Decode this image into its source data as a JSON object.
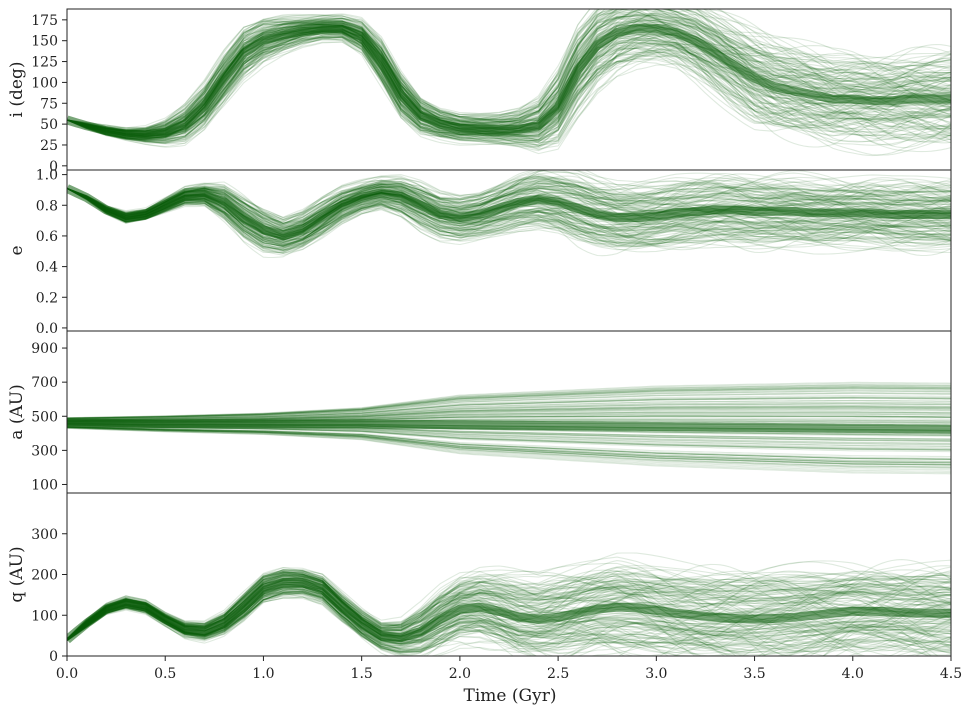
{
  "chart_data": {
    "type": "line",
    "xlabel": "Time (Gyr)",
    "xlim": [
      0,
      4.5
    ],
    "xticks": [
      "0.0",
      "0.5",
      "1.0",
      "1.5",
      "2.0",
      "2.5",
      "3.0",
      "3.5",
      "4.0",
      "4.5"
    ],
    "line_color": "#0b5d0b",
    "panels": [
      {
        "ylabel": "i (deg)",
        "ylim": [
          -5,
          188
        ],
        "yticks": [
          "0",
          "25",
          "50",
          "75",
          "100",
          "125",
          "150",
          "175"
        ],
        "dominant_track": {
          "x": [
            0.0,
            0.1,
            0.2,
            0.3,
            0.4,
            0.5,
            0.6,
            0.7,
            0.8,
            0.9,
            1.0,
            1.1,
            1.2,
            1.3,
            1.4,
            1.5,
            1.6,
            1.7,
            1.8,
            1.9,
            2.0,
            2.1,
            2.2,
            2.3,
            2.4,
            2.5,
            2.6,
            2.7,
            2.8,
            2.9,
            3.0,
            3.1,
            3.2,
            3.3,
            3.4,
            3.5,
            3.6,
            3.7,
            3.8,
            3.9,
            4.0,
            4.1,
            4.2,
            4.3,
            4.4,
            4.5
          ],
          "y": [
            55,
            48,
            42,
            38,
            37,
            40,
            50,
            72,
            105,
            135,
            150,
            157,
            162,
            165,
            165,
            155,
            125,
            85,
            60,
            50,
            45,
            44,
            43,
            44,
            48,
            70,
            115,
            145,
            160,
            165,
            165,
            160,
            150,
            135,
            120,
            105,
            95,
            90,
            85,
            80,
            80,
            78,
            78,
            80,
            80,
            80
          ]
        },
        "spread": [
          0,
          3,
          5,
          6,
          8,
          12,
          18,
          22,
          25,
          25,
          22,
          18,
          14,
          12,
          12,
          16,
          22,
          22,
          18,
          15,
          14,
          14,
          15,
          18,
          25,
          35,
          40,
          40,
          38,
          36,
          35,
          35,
          38,
          40,
          42,
          45,
          45,
          45,
          45,
          45,
          45,
          45,
          45,
          45,
          45,
          45
        ]
      },
      {
        "ylabel": "e",
        "ylim": [
          -0.02,
          1.03
        ],
        "yticks": [
          "0.0",
          "0.2",
          "0.4",
          "0.6",
          "0.8",
          "1.0"
        ],
        "dominant_track": {
          "x": [
            0.0,
            0.1,
            0.2,
            0.3,
            0.4,
            0.5,
            0.6,
            0.7,
            0.8,
            0.9,
            1.0,
            1.1,
            1.2,
            1.3,
            1.4,
            1.5,
            1.6,
            1.7,
            1.8,
            1.9,
            2.0,
            2.1,
            2.2,
            2.3,
            2.4,
            2.5,
            2.6,
            2.7,
            2.8,
            2.9,
            3.0,
            3.1,
            3.2,
            3.3,
            3.4,
            3.5,
            3.6,
            3.7,
            3.8,
            3.9,
            4.0,
            4.1,
            4.2,
            4.3,
            4.4,
            4.5
          ],
          "y": [
            0.91,
            0.85,
            0.77,
            0.72,
            0.74,
            0.8,
            0.86,
            0.87,
            0.82,
            0.72,
            0.64,
            0.6,
            0.64,
            0.72,
            0.8,
            0.85,
            0.88,
            0.86,
            0.8,
            0.74,
            0.72,
            0.74,
            0.78,
            0.82,
            0.84,
            0.82,
            0.78,
            0.74,
            0.72,
            0.72,
            0.73,
            0.75,
            0.76,
            0.77,
            0.77,
            0.76,
            0.76,
            0.76,
            0.75,
            0.75,
            0.75,
            0.75,
            0.74,
            0.74,
            0.74,
            0.74
          ]
        },
        "spread": [
          0,
          0.01,
          0.02,
          0.03,
          0.03,
          0.04,
          0.05,
          0.06,
          0.1,
          0.12,
          0.12,
          0.1,
          0.1,
          0.1,
          0.09,
          0.08,
          0.08,
          0.1,
          0.12,
          0.12,
          0.12,
          0.12,
          0.13,
          0.14,
          0.15,
          0.16,
          0.18,
          0.18,
          0.18,
          0.18,
          0.18,
          0.18,
          0.18,
          0.18,
          0.18,
          0.18,
          0.18,
          0.18,
          0.18,
          0.18,
          0.18,
          0.18,
          0.18,
          0.18,
          0.18,
          0.18
        ]
      },
      {
        "ylabel": "a (AU)",
        "ylim": [
          50,
          1000
        ],
        "yticks": [
          "100",
          "300",
          "500",
          "700",
          "900"
        ],
        "dominant_track": {
          "x": [
            0.0,
            0.5,
            1.0,
            1.5,
            2.0,
            2.5,
            3.0,
            3.5,
            4.0,
            4.5
          ],
          "y": [
            460,
            455,
            455,
            455,
            450,
            445,
            440,
            435,
            430,
            425
          ]
        },
        "spread": [
          20,
          30,
          40,
          60,
          110,
          130,
          150,
          160,
          170,
          170
        ]
      },
      {
        "ylabel": "q (AU)",
        "ylim": [
          0,
          400
        ],
        "yticks": [
          "0",
          "100",
          "200",
          "300"
        ],
        "dominant_track": {
          "x": [
            0.0,
            0.1,
            0.2,
            0.3,
            0.4,
            0.5,
            0.6,
            0.7,
            0.8,
            0.9,
            1.0,
            1.1,
            1.2,
            1.3,
            1.4,
            1.5,
            1.6,
            1.7,
            1.8,
            1.9,
            2.0,
            2.1,
            2.2,
            2.3,
            2.4,
            2.5,
            2.6,
            2.7,
            2.8,
            2.9,
            3.0,
            3.1,
            3.2,
            3.3,
            3.4,
            3.5,
            3.6,
            3.7,
            3.8,
            3.9,
            4.0,
            4.1,
            4.2,
            4.3,
            4.4,
            4.5
          ],
          "y": [
            40,
            80,
            115,
            130,
            120,
            90,
            65,
            60,
            80,
            120,
            165,
            180,
            180,
            165,
            120,
            80,
            50,
            45,
            60,
            90,
            115,
            120,
            110,
            95,
            90,
            95,
            105,
            115,
            120,
            118,
            112,
            105,
            100,
            95,
            92,
            90,
            92,
            95,
            100,
            105,
            110,
            110,
            108,
            106,
            105,
            105
          ]
        },
        "spread": [
          2,
          8,
          10,
          12,
          12,
          12,
          15,
          18,
          22,
          28,
          30,
          30,
          28,
          28,
          28,
          28,
          28,
          35,
          50,
          60,
          65,
          70,
          75,
          80,
          80,
          85,
          85,
          85,
          90,
          90,
          90,
          90,
          90,
          90,
          90,
          90,
          90,
          90,
          90,
          90,
          90,
          90,
          90,
          90,
          90,
          90
        ]
      }
    ]
  }
}
